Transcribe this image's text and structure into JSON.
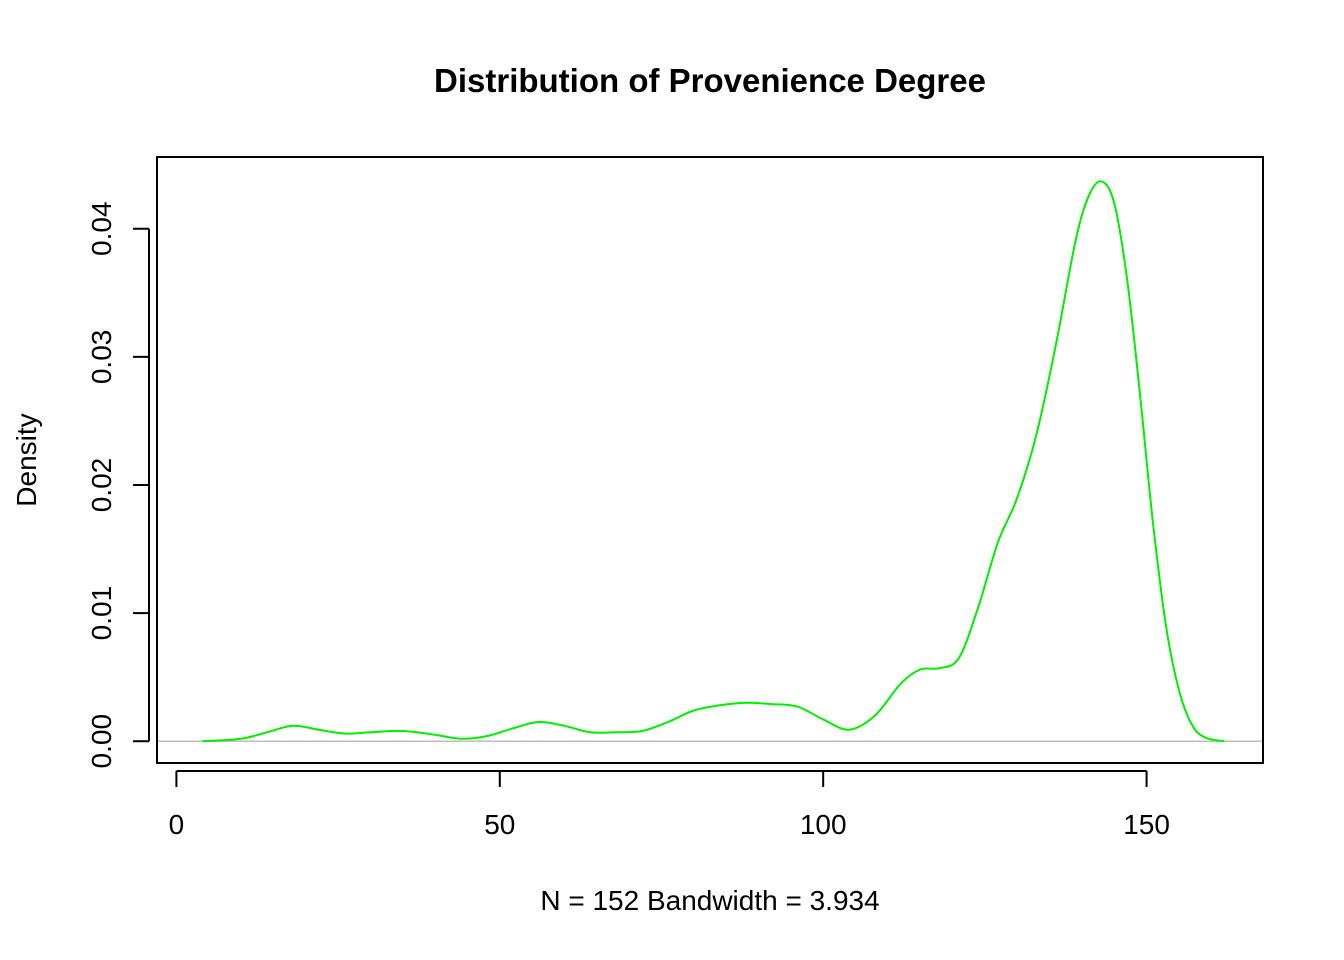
{
  "chart_data": {
    "type": "line",
    "title": "Distribution of Provenience Degree",
    "xlabel": "N = 152   Bandwidth = 3.934",
    "ylabel": "Density",
    "xlim": [
      -3,
      168
    ],
    "ylim": [
      -0.0017,
      0.0456
    ],
    "xticks": [
      0,
      50,
      100,
      150
    ],
    "xtick_labels": [
      "0",
      "50",
      "100",
      "150"
    ],
    "yticks": [
      0,
      0.01,
      0.02,
      0.03,
      0.04
    ],
    "ytick_labels": [
      "0.00",
      "0.01",
      "0.02",
      "0.03",
      "0.04"
    ],
    "baseline": 0,
    "grid": false,
    "legend": "none",
    "series": [
      {
        "color": "#00ee00",
        "x": [
          4,
          10,
          14,
          18,
          22,
          26,
          30,
          35,
          40,
          44,
          48,
          52,
          56,
          60,
          64,
          68,
          72,
          76,
          80,
          84,
          88,
          92,
          96,
          100,
          104,
          108,
          112,
          115,
          118,
          121,
          124,
          127,
          130,
          133,
          136,
          139,
          141,
          143,
          145,
          147,
          149,
          151,
          153,
          155,
          157,
          159,
          162
        ],
        "y": [
          0.0,
          0.0002,
          0.0007,
          0.0012,
          0.0009,
          0.0006,
          0.0007,
          0.0008,
          0.0005,
          0.0002,
          0.0004,
          0.001,
          0.0015,
          0.0012,
          0.0007,
          0.0007,
          0.0008,
          0.0015,
          0.0024,
          0.0028,
          0.003,
          0.0029,
          0.0027,
          0.0017,
          0.0009,
          0.002,
          0.0045,
          0.0056,
          0.0057,
          0.0065,
          0.0105,
          0.0155,
          0.019,
          0.024,
          0.031,
          0.039,
          0.0425,
          0.0437,
          0.042,
          0.036,
          0.027,
          0.017,
          0.009,
          0.004,
          0.0013,
          0.0003,
          0.0
        ]
      }
    ]
  }
}
